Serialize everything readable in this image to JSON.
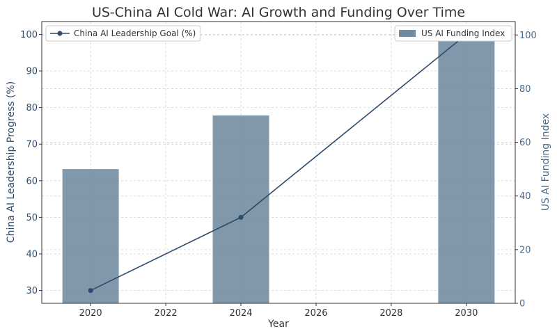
{
  "chart_data": {
    "type": "bar+line",
    "title": "US-China AI Cold War: AI Growth and Funding Over Time",
    "xlabel": "Year",
    "ylabel_left": "China AI Leadership Progress (%)",
    "ylabel_right": "US AI Funding Index",
    "x_ticks": [
      2020,
      2022,
      2024,
      2026,
      2028,
      2030
    ],
    "xlim": [
      2018.7,
      2031.3
    ],
    "ylim_left": [
      26.5,
      103.5
    ],
    "ylim_right": [
      0,
      105
    ],
    "y_ticks_left": [
      30,
      40,
      50,
      60,
      70,
      80,
      90,
      100
    ],
    "y_ticks_right": [
      0,
      20,
      40,
      60,
      80,
      100
    ],
    "grid": true,
    "series": [
      {
        "name": "China AI Leadership Goal (%)",
        "type": "line",
        "axis": "left",
        "color": "#2e4a6b",
        "x": [
          2020,
          2024,
          2030
        ],
        "y": [
          30,
          50,
          100
        ]
      },
      {
        "name": "US AI Funding Index",
        "type": "bar",
        "axis": "right",
        "color": "#708a9f",
        "x": [
          2020,
          2024,
          2030
        ],
        "y": [
          50,
          70,
          100
        ]
      }
    ],
    "legend": [
      {
        "label": "China AI Leadership Goal (%)",
        "placement": "top-left"
      },
      {
        "label": "US AI Funding Index",
        "placement": "top-right"
      }
    ]
  }
}
